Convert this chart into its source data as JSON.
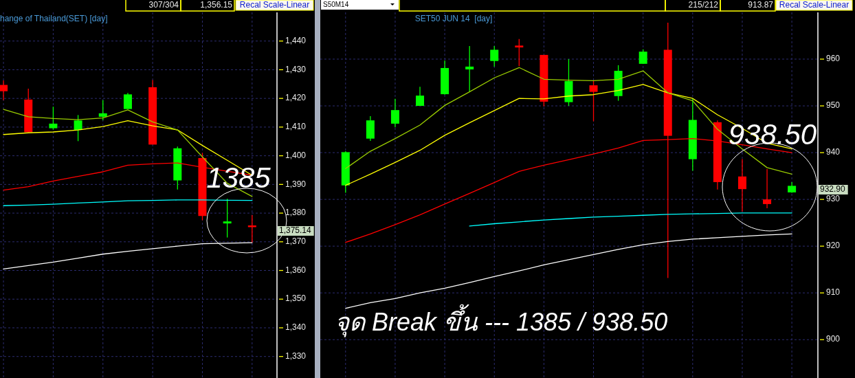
{
  "chart_data": [
    {
      "type": "candlestick",
      "title": "hange of Thailand(SET) [day]",
      "categories": [
        null,
        null,
        null,
        null,
        null,
        null,
        null,
        null,
        null,
        null,
        null
      ],
      "ohlc": [
        [
          1424.7,
          1426.3,
          1419.4,
          1422.5
        ],
        [
          1419.6,
          1423.4,
          1408.2,
          1408.2
        ],
        [
          1409.6,
          1417.1,
          1409.1,
          1411.2
        ],
        [
          1409.0,
          1414.2,
          1405.1,
          1412.3
        ],
        [
          1413.6,
          1419.4,
          1412.4,
          1414.8
        ],
        [
          1416.3,
          1421.9,
          1416.3,
          1421.4
        ],
        [
          1423.9,
          1426.4,
          1403.9,
          1403.9
        ],
        [
          1391.4,
          1403.2,
          1388.2,
          1402.6
        ],
        [
          1399.2,
          1401.0,
          1377.5,
          1379.0
        ],
        [
          1376.4,
          1385.0,
          1371.5,
          1377.1
        ],
        [
          1375.7,
          1379.3,
          1369.7,
          1375.1
        ]
      ],
      "colors": [
        "#ff0000",
        "#ff0000",
        "#00ff00",
        "#00ff00",
        "#00ff00",
        "#00ff00",
        "#ff0000",
        "#00ff00",
        "#ff0000",
        "#00ff00",
        "#ff0000"
      ],
      "series": [
        {
          "type": "line",
          "color": "#ffffff",
          "values": [
            1360.5,
            1361.7,
            1362.9,
            1364.3,
            1365.7,
            1366.7,
            1367.6,
            1368.5,
            1369.3,
            1369.5,
            1369.7
          ]
        },
        {
          "type": "line",
          "color": "#00ffff",
          "values": [
            1382.6,
            1382.8,
            1383.1,
            1383.5,
            1383.9,
            1384.3,
            1384.4,
            1384.6,
            1384.6,
            1384.5,
            1384.4
          ]
        },
        {
          "type": "line",
          "color": "#ff0000",
          "values": [
            1388.0,
            1389.2,
            1391.2,
            1392.8,
            1394.4,
            1396.7,
            1397.2,
            1397.5,
            1396.0,
            1394.6,
            1393.2
          ]
        },
        {
          "type": "line",
          "color": "#ffff00",
          "values": [
            1407.4,
            1408.0,
            1408.3,
            1409.0,
            1410.2,
            1412.2,
            1410.4,
            1409.0,
            1403.6,
            1398.4,
            1393.2
          ]
        },
        {
          "type": "line",
          "color": "#99cc00",
          "values": [
            1416.2,
            1413.6,
            1413.0,
            1412.6,
            1413.2,
            1416.0,
            1411.8,
            1409.0,
            1399.6,
            1390.4,
            1385.8
          ]
        }
      ],
      "ylim": [
        1322.5,
        1450
      ],
      "yticks": [
        {
          "value": 1330,
          "label": "1,330"
        },
        {
          "value": 1340,
          "label": "1,340"
        },
        {
          "value": 1350,
          "label": "1,350"
        },
        {
          "value": 1360,
          "label": "1,360"
        },
        {
          "value": 1370,
          "label": "1,370"
        },
        {
          "value": 1380,
          "label": "1,380"
        },
        {
          "value": 1390,
          "label": "1,390"
        },
        {
          "value": 1400,
          "label": "1,400"
        },
        {
          "value": 1410,
          "label": "1,410"
        },
        {
          "value": 1420,
          "label": "1,420"
        },
        {
          "value": 1430,
          "label": "1,430"
        },
        {
          "value": 1440,
          "label": "1,440"
        }
      ],
      "grid": true,
      "annotations": [
        "307/304",
        "1,356.15",
        "Recal Scale-Linear",
        "1385",
        "1,375.14"
      ]
    },
    {
      "type": "candlestick",
      "title": "SET50 JUN 14  [day]",
      "categories": [
        null,
        null,
        null,
        null,
        null,
        null,
        null,
        null,
        null,
        null,
        null,
        null,
        null,
        null,
        null,
        null,
        null,
        null,
        null
      ],
      "ohlc": [
        [
          933.0,
          940.3,
          931.4,
          940.1
        ],
        [
          943.0,
          947.8,
          942.5,
          946.9
        ],
        [
          946.2,
          951.5,
          945.4,
          949.1
        ],
        [
          950.0,
          954.1,
          950.0,
          952.2
        ],
        [
          952.5,
          959.7,
          952.4,
          958.1
        ],
        [
          957.8,
          962.8,
          953.1,
          958.4
        ],
        [
          959.6,
          962.8,
          958.4,
          962.0
        ],
        [
          962.9,
          964.3,
          958.5,
          962.5
        ],
        [
          960.9,
          960.9,
          949.9,
          950.9
        ],
        [
          950.8,
          960.0,
          950.0,
          955.3
        ],
        [
          954.4,
          955.4,
          946.7,
          953.0
        ],
        [
          952.1,
          958.7,
          951.1,
          957.5
        ],
        [
          959.0,
          962.1,
          959.0,
          961.6
        ],
        [
          962.0,
          967.8,
          913.2,
          943.6
        ],
        [
          938.6,
          951.6,
          936.1,
          947.0
        ],
        [
          946.5,
          946.9,
          932.1,
          933.7
        ],
        [
          934.9,
          938.6,
          927.4,
          932.2
        ],
        [
          930.0,
          936.5,
          928.1,
          929.0
        ],
        [
          931.5,
          933.7,
          931.4,
          932.9
        ]
      ],
      "colors": [
        "#00ff00",
        "#00ff00",
        "#00ff00",
        "#00ff00",
        "#00ff00",
        "#00ff00",
        "#00ff00",
        "#ff0000",
        "#ff0000",
        "#00ff00",
        "#ff0000",
        "#00ff00",
        "#00ff00",
        "#ff0000",
        "#00ff00",
        "#ff0000",
        "#ff0000",
        "#ff0000",
        "#00ff00"
      ],
      "series": [
        {
          "type": "line",
          "color": "#ffffff",
          "values": [
            906.7,
            907.9,
            908.8,
            910.0,
            911.0,
            912.2,
            913.5,
            914.7,
            916.0,
            917.1,
            918.2,
            919.3,
            920.3,
            921.0,
            921.5,
            921.8,
            922.1,
            922.4,
            922.6
          ]
        },
        {
          "type": "line",
          "color": "#00ffff",
          "values": [
            null,
            null,
            null,
            null,
            null,
            924.3,
            924.8,
            925.2,
            925.6,
            925.9,
            926.2,
            926.4,
            926.6,
            926.8,
            926.9,
            927.0,
            927.1,
            927.1,
            927.1
          ]
        },
        {
          "type": "line",
          "color": "#ff0000",
          "values": [
            920.8,
            922.6,
            924.6,
            926.7,
            929.0,
            931.3,
            933.6,
            936.0,
            937.3,
            938.5,
            939.7,
            941.0,
            942.6,
            942.8,
            943.0,
            942.5,
            941.7,
            940.8,
            940.0
          ]
        },
        {
          "type": "line",
          "color": "#ffff00",
          "values": [
            933.0,
            935.4,
            937.9,
            940.5,
            943.7,
            946.4,
            949.0,
            951.6,
            951.5,
            952.1,
            952.4,
            953.3,
            954.6,
            952.8,
            951.6,
            948.1,
            945.2,
            942.0,
            940.8
          ]
        },
        {
          "type": "line",
          "color": "#99cc00",
          "values": [
            936.6,
            940.3,
            943.0,
            945.9,
            950.1,
            953.0,
            956.0,
            958.2,
            955.7,
            955.5,
            955.4,
            955.7,
            957.5,
            952.8,
            951.1,
            945.0,
            940.8,
            936.8,
            935.4
          ]
        }
      ],
      "ylim": [
        891.8,
        970
      ],
      "yticks": [
        900,
        910,
        920,
        930,
        940,
        950,
        960
      ],
      "grid": true,
      "annotations": [
        "S50M14",
        "215/212",
        "913.87",
        "Recal Scale-Linear",
        "938.50",
        "จุด Break ขึ้น --- 1385 / 938.50",
        "932.90"
      ]
    }
  ]
}
